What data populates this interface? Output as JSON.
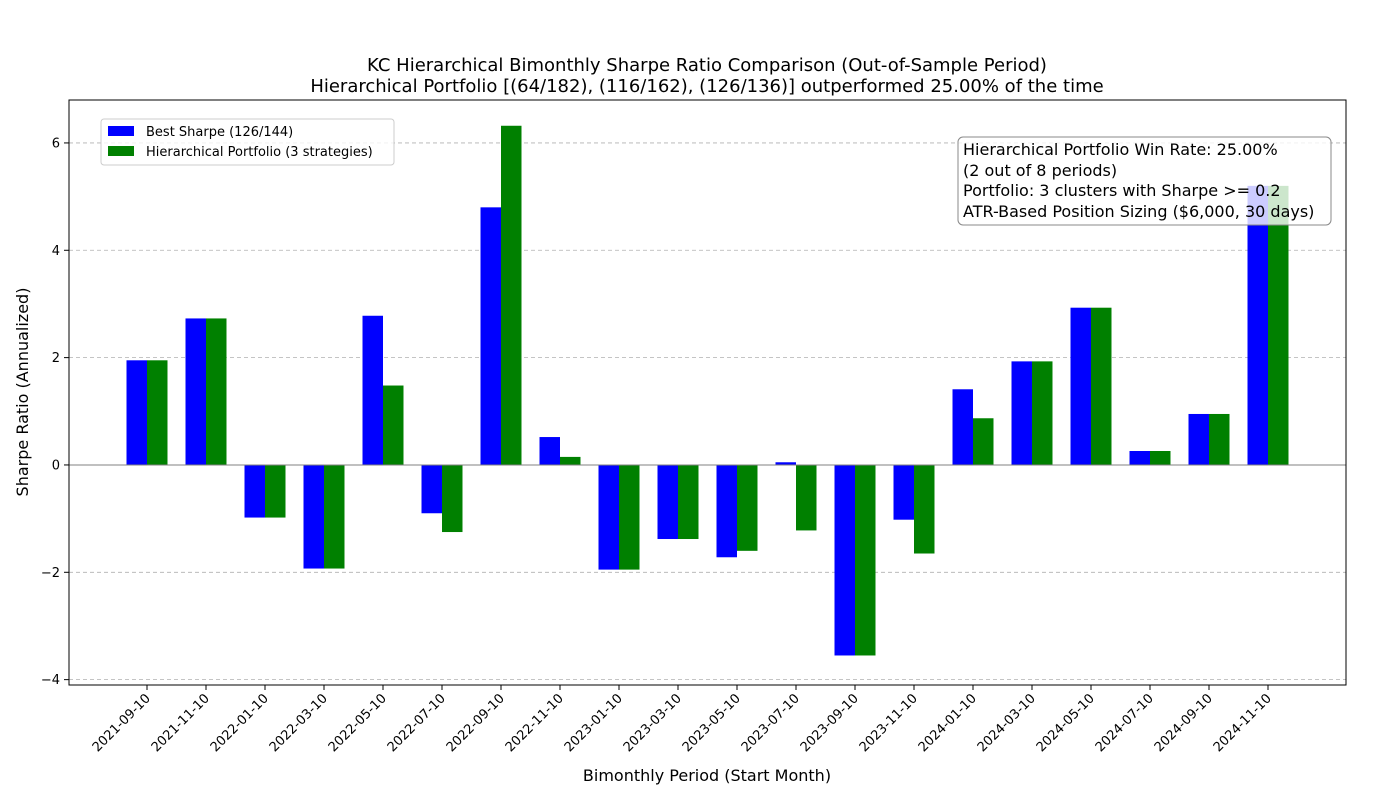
{
  "chart_data": {
    "type": "bar",
    "title": "KC Hierarchical Bimonthly Sharpe Ratio Comparison (Out-of-Sample Period)",
    "subtitle": "Hierarchical Portfolio [(64/182), (116/162), (126/136)] outperformed 25.00% of the time",
    "xlabel": "Bimonthly Period (Start Month)",
    "ylabel": "Sharpe Ratio (Annualized)",
    "ylim": [
      -4.1,
      6.8
    ],
    "yticks": [
      -4,
      -2,
      0,
      2,
      4,
      6
    ],
    "ytick_labels": [
      "−4",
      "−2",
      "0",
      "2",
      "4",
      "6"
    ],
    "grid": "y-dashed",
    "legend_position": "top-left",
    "categories": [
      "2021-09-10",
      "2021-11-10",
      "2022-01-10",
      "2022-03-10",
      "2022-05-10",
      "2022-07-10",
      "2022-09-10",
      "2022-11-10",
      "2023-01-10",
      "2023-03-10",
      "2023-05-10",
      "2023-07-10",
      "2023-09-10",
      "2023-11-10",
      "2024-01-10",
      "2024-03-10",
      "2024-05-10",
      "2024-07-10",
      "2024-09-10",
      "2024-11-10"
    ],
    "series": [
      {
        "name": "Best Sharpe (126/144)",
        "color": "#0000ff",
        "values": [
          1.95,
          2.73,
          -0.98,
          -1.93,
          2.78,
          -0.9,
          4.8,
          0.52,
          -1.95,
          -1.38,
          -1.72,
          0.05,
          -3.55,
          -1.02,
          1.41,
          1.93,
          2.93,
          0.26,
          0.95,
          5.2
        ]
      },
      {
        "name": "Hierarchical Portfolio (3 strategies)",
        "color": "#008000",
        "values": [
          1.95,
          2.73,
          -0.98,
          -1.93,
          1.48,
          -1.25,
          6.32,
          0.15,
          -1.95,
          -1.38,
          -1.6,
          -1.22,
          -3.55,
          -1.65,
          0.87,
          1.93,
          2.93,
          0.26,
          0.95,
          5.2
        ]
      }
    ],
    "annotation": {
      "lines": [
        "Hierarchical Portfolio Win Rate: 25.00%",
        "(2 out of 8 periods)",
        "Portfolio: 3 clusters with Sharpe >= 0.2",
        "ATR-Based Position Sizing ($6,000, 30 days)"
      ],
      "position": "top-right"
    }
  }
}
